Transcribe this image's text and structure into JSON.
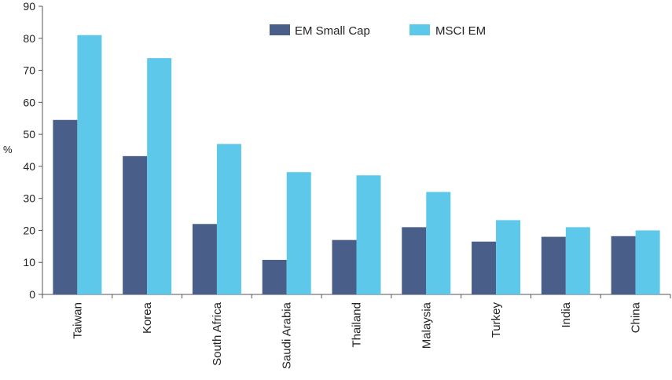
{
  "chart_data": {
    "type": "bar",
    "ylabel": "%",
    "ylim": [
      0,
      90
    ],
    "yticks": [
      0,
      10,
      20,
      30,
      40,
      50,
      60,
      70,
      80,
      90
    ],
    "categories": [
      "Taiwan",
      "Korea",
      "South Africa",
      "Saudi Arabia",
      "Thailand",
      "Malaysia",
      "Turkey",
      "India",
      "China"
    ],
    "series": [
      {
        "name": "EM Small Cap",
        "color": "#4a5e8a",
        "values": [
          54.5,
          43.2,
          22,
          10.8,
          17,
          21,
          16.5,
          18,
          18.2
        ]
      },
      {
        "name": "MSCI EM",
        "color": "#5ec8ea",
        "values": [
          81,
          73.8,
          47,
          38.2,
          37.2,
          32,
          23.2,
          21,
          20
        ]
      }
    ],
    "legend_position": "top-center",
    "grid": false
  }
}
